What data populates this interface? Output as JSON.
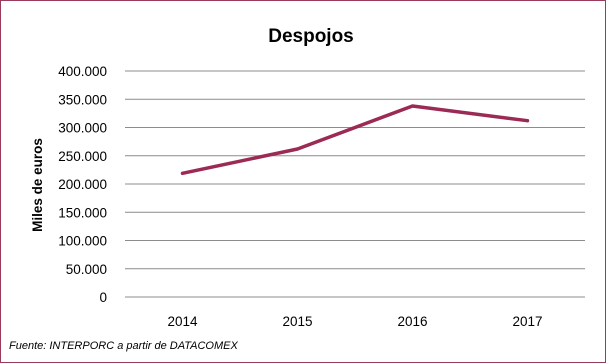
{
  "chart_data": {
    "type": "line",
    "title": "Despojos",
    "ylabel": "Miles de euros",
    "xlabel": "",
    "categories": [
      "2014",
      "2015",
      "2016",
      "2017"
    ],
    "series": [
      {
        "values": [
          219000,
          262000,
          338000,
          312000
        ]
      }
    ],
    "ylim": [
      0,
      400000
    ],
    "yticks": [
      0,
      50000,
      100000,
      150000,
      200000,
      250000,
      300000,
      350000,
      400000
    ],
    "ytick_labels": [
      "0",
      "50.000",
      "100.000",
      "150.000",
      "200.000",
      "250.000",
      "300.000",
      "350.000",
      "400.000"
    ],
    "grid": true,
    "legend": "none",
    "line_color": "#9b2a55",
    "source": "Fuente: INTERPORC  a partir de DATACOMEX"
  }
}
